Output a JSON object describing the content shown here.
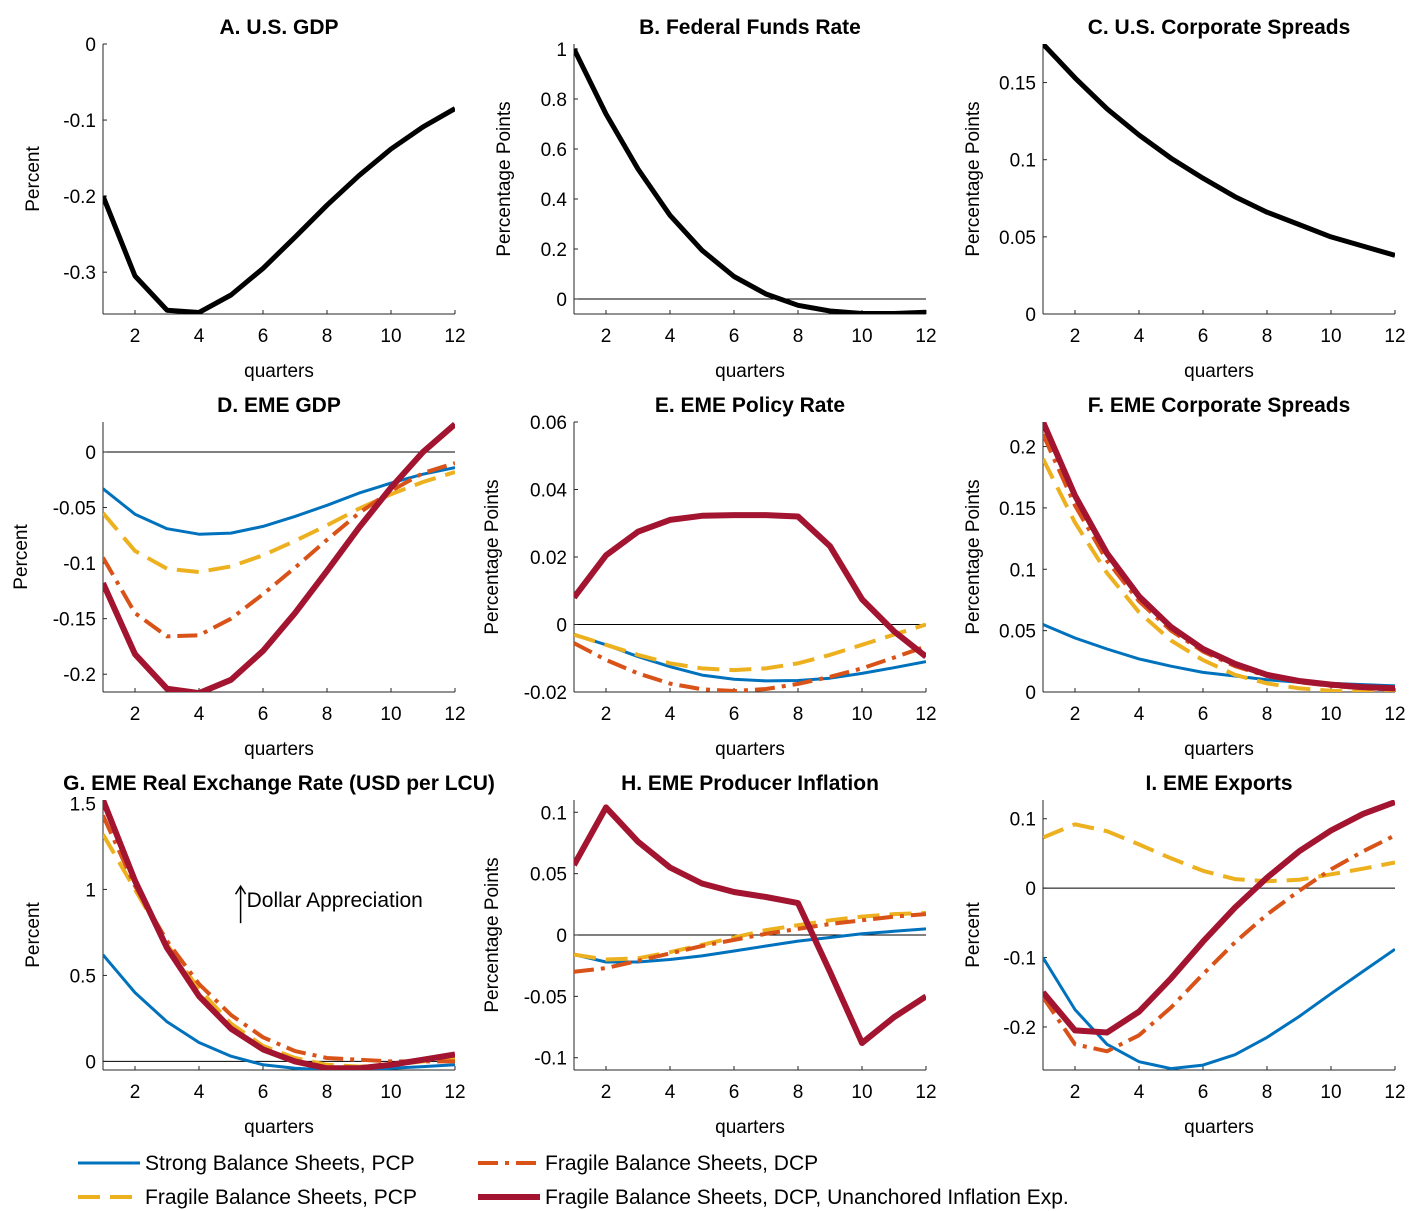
{
  "figure": {
    "legend": [
      {
        "label": "Strong Balance Sheets, PCP",
        "color": "#0072BD",
        "style": "solid-thin"
      },
      {
        "label": "Fragile Balance Sheets, DCP",
        "color": "#D95319",
        "style": "dashdot"
      },
      {
        "label": "Fragile Balance Sheets, PCP",
        "color": "#EDB120",
        "style": "dashed"
      },
      {
        "label": "Fragile Balance Sheets, DCP, Unanchored Inflation Exp.",
        "color": "#A2142F",
        "style": "solid-thick"
      }
    ]
  },
  "chart_data": [
    {
      "id": "A",
      "type": "line",
      "title": "A. U.S. GDP",
      "xlabel": "quarters",
      "ylabel": "Percent",
      "xlim": [
        1,
        12
      ],
      "ylim": [
        -0.355,
        0
      ],
      "xticks": [
        2,
        4,
        6,
        8,
        10,
        12
      ],
      "xtick_labels": [
        "2",
        "4",
        "6",
        "8",
        "10",
        "12"
      ],
      "yticks": [
        -0.3,
        -0.2,
        -0.1,
        0
      ],
      "ytick_labels": [
        "-0.3",
        "-0.2",
        "-0.1",
        "0"
      ],
      "zero_line": false,
      "x": [
        1,
        2,
        3,
        4,
        5,
        6,
        7,
        8,
        9,
        10,
        11,
        12
      ],
      "series": [
        {
          "color": "#000000",
          "width": 5,
          "values": [
            -0.2,
            -0.305,
            -0.35,
            -0.353,
            -0.33,
            -0.295,
            -0.254,
            -0.212,
            -0.173,
            -0.138,
            -0.109,
            -0.085
          ]
        }
      ]
    },
    {
      "id": "B",
      "type": "line",
      "title": "B. Federal Funds Rate",
      "xlabel": "quarters",
      "ylabel": "Percentage Points",
      "xlim": [
        1,
        12
      ],
      "ylim": [
        -0.06,
        1.02
      ],
      "xticks": [
        2,
        4,
        6,
        8,
        10,
        12
      ],
      "xtick_labels": [
        "2",
        "4",
        "6",
        "8",
        "10",
        "12"
      ],
      "yticks": [
        0,
        0.2,
        0.4,
        0.6,
        0.8,
        1
      ],
      "ytick_labels": [
        "0",
        "0.2",
        "0.4",
        "0.6",
        "0.8",
        "1"
      ],
      "zero_line": true,
      "x": [
        1,
        2,
        3,
        4,
        5,
        6,
        7,
        8,
        9,
        10,
        11,
        12
      ],
      "series": [
        {
          "color": "#000000",
          "width": 5,
          "values": [
            1.0,
            0.74,
            0.52,
            0.335,
            0.195,
            0.09,
            0.02,
            -0.025,
            -0.048,
            -0.058,
            -0.058,
            -0.053
          ]
        }
      ]
    },
    {
      "id": "C",
      "type": "line",
      "title": "C. U.S. Corporate Spreads",
      "xlabel": "quarters",
      "ylabel": "Percentage Points",
      "xlim": [
        1,
        12
      ],
      "ylim": [
        0,
        0.175
      ],
      "xticks": [
        2,
        4,
        6,
        8,
        10,
        12
      ],
      "xtick_labels": [
        "2",
        "4",
        "6",
        "8",
        "10",
        "12"
      ],
      "yticks": [
        0,
        0.05,
        0.1,
        0.15
      ],
      "ytick_labels": [
        "0",
        "0.05",
        "0.1",
        "0.15"
      ],
      "zero_line": false,
      "x": [
        1,
        2,
        3,
        4,
        5,
        6,
        7,
        8,
        9,
        10,
        11,
        12
      ],
      "series": [
        {
          "color": "#000000",
          "width": 5,
          "values": [
            0.175,
            0.153,
            0.133,
            0.116,
            0.101,
            0.088,
            0.076,
            0.066,
            0.058,
            0.05,
            0.044,
            0.038
          ]
        }
      ]
    },
    {
      "id": "D",
      "type": "line",
      "title": "D. EME GDP",
      "xlabel": "quarters",
      "ylabel": "Percent",
      "xlim": [
        1,
        12
      ],
      "ylim": [
        -0.216,
        0.027
      ],
      "xticks": [
        2,
        4,
        6,
        8,
        10,
        12
      ],
      "xtick_labels": [
        "2",
        "4",
        "6",
        "8",
        "10",
        "12"
      ],
      "yticks": [
        -0.2,
        -0.15,
        -0.1,
        -0.05,
        0
      ],
      "ytick_labels": [
        "-0.2",
        "-0.15",
        "-0.1",
        "-0.05",
        "0"
      ],
      "zero_line": true,
      "x": [
        1,
        2,
        3,
        4,
        5,
        6,
        7,
        8,
        9,
        10,
        11,
        12
      ],
      "series": [
        {
          "color": "#0072BD",
          "width": 3,
          "dash": "",
          "values": [
            -0.033,
            -0.056,
            -0.069,
            -0.074,
            -0.073,
            -0.067,
            -0.058,
            -0.048,
            -0.037,
            -0.028,
            -0.02,
            -0.014
          ]
        },
        {
          "color": "#EDB120",
          "width": 4,
          "dash": "22 10",
          "values": [
            -0.055,
            -0.089,
            -0.105,
            -0.108,
            -0.103,
            -0.093,
            -0.08,
            -0.066,
            -0.051,
            -0.038,
            -0.027,
            -0.018
          ]
        },
        {
          "color": "#D95319",
          "width": 4,
          "dash": "20 7 4 7",
          "values": [
            -0.095,
            -0.145,
            -0.166,
            -0.165,
            -0.15,
            -0.128,
            -0.104,
            -0.079,
            -0.055,
            -0.035,
            -0.019,
            -0.01
          ]
        },
        {
          "color": "#A2142F",
          "width": 6,
          "dash": "",
          "values": [
            -0.118,
            -0.182,
            -0.213,
            -0.217,
            -0.205,
            -0.179,
            -0.145,
            -0.107,
            -0.068,
            -0.032,
            0.0,
            0.025
          ]
        }
      ]
    },
    {
      "id": "E",
      "type": "line",
      "title": "E. EME Policy Rate",
      "xlabel": "quarters",
      "ylabel": "Percentage Points",
      "xlim": [
        1,
        12
      ],
      "ylim": [
        -0.02,
        0.06
      ],
      "xticks": [
        2,
        4,
        6,
        8,
        10,
        12
      ],
      "xtick_labels": [
        "2",
        "4",
        "6",
        "8",
        "10",
        "12"
      ],
      "yticks": [
        -0.02,
        0,
        0.02,
        0.04,
        0.06
      ],
      "ytick_labels": [
        "-0.02",
        "0",
        "0.02",
        "0.04",
        "0.06"
      ],
      "zero_line": true,
      "x": [
        1,
        2,
        3,
        4,
        5,
        6,
        7,
        8,
        9,
        10,
        11,
        12
      ],
      "series": [
        {
          "color": "#0072BD",
          "width": 3,
          "dash": "",
          "values": [
            -0.003,
            -0.006,
            -0.0095,
            -0.0125,
            -0.015,
            -0.0162,
            -0.0167,
            -0.0166,
            -0.0159,
            -0.0145,
            -0.0128,
            -0.011
          ]
        },
        {
          "color": "#EDB120",
          "width": 4,
          "dash": "22 10",
          "values": [
            -0.003,
            -0.006,
            -0.009,
            -0.0115,
            -0.013,
            -0.0135,
            -0.013,
            -0.0115,
            -0.009,
            -0.006,
            -0.003,
            0.0
          ]
        },
        {
          "color": "#D95319",
          "width": 4,
          "dash": "20 7 4 7",
          "values": [
            -0.0055,
            -0.0105,
            -0.0145,
            -0.0175,
            -0.0192,
            -0.0197,
            -0.0191,
            -0.0176,
            -0.0155,
            -0.013,
            -0.0098,
            -0.0065
          ]
        },
        {
          "color": "#A2142F",
          "width": 6,
          "dash": "",
          "values": [
            0.008,
            0.0205,
            0.0275,
            0.031,
            0.0322,
            0.0324,
            0.0324,
            0.032,
            0.0232,
            0.0075,
            -0.002,
            -0.0095
          ]
        }
      ]
    },
    {
      "id": "F",
      "type": "line",
      "title": "F. EME Corporate Spreads",
      "xlabel": "quarters",
      "ylabel": "Percentage Points",
      "xlim": [
        1,
        12
      ],
      "ylim": [
        0,
        0.22
      ],
      "xticks": [
        2,
        4,
        6,
        8,
        10,
        12
      ],
      "xtick_labels": [
        "2",
        "4",
        "6",
        "8",
        "10",
        "12"
      ],
      "yticks": [
        0,
        0.05,
        0.1,
        0.15,
        0.2
      ],
      "ytick_labels": [
        "0",
        "0.05",
        "0.1",
        "0.15",
        "0.2"
      ],
      "zero_line": false,
      "x": [
        1,
        2,
        3,
        4,
        5,
        6,
        7,
        8,
        9,
        10,
        11,
        12
      ],
      "series": [
        {
          "color": "#0072BD",
          "width": 3,
          "dash": "",
          "values": [
            0.055,
            0.044,
            0.035,
            0.027,
            0.021,
            0.016,
            0.013,
            0.01,
            0.008,
            0.007,
            0.006,
            0.005
          ]
        },
        {
          "color": "#EDB120",
          "width": 4,
          "dash": "22 10",
          "values": [
            0.19,
            0.138,
            0.097,
            0.065,
            0.042,
            0.026,
            0.014,
            0.007,
            0.003,
            0.001,
            0.0,
            0.0
          ]
        },
        {
          "color": "#D95319",
          "width": 4,
          "dash": "20 7 4 7",
          "values": [
            0.21,
            0.152,
            0.107,
            0.074,
            0.05,
            0.033,
            0.021,
            0.013,
            0.008,
            0.005,
            0.003,
            0.002
          ]
        },
        {
          "color": "#A2142F",
          "width": 6,
          "dash": "",
          "values": [
            0.22,
            0.16,
            0.113,
            0.078,
            0.053,
            0.035,
            0.023,
            0.014,
            0.009,
            0.006,
            0.004,
            0.003
          ]
        }
      ]
    },
    {
      "id": "G",
      "type": "line",
      "title": "G. EME Real Exchange Rate (USD per LCU)",
      "xlabel": "quarters",
      "ylabel": "Percent",
      "xlim": [
        1,
        12
      ],
      "ylim": [
        -0.05,
        1.52
      ],
      "xticks": [
        2,
        4,
        6,
        8,
        10,
        12
      ],
      "xtick_labels": [
        "2",
        "4",
        "6",
        "8",
        "10",
        "12"
      ],
      "yticks": [
        0,
        0.5,
        1,
        1.5
      ],
      "ytick_labels": [
        "0",
        "0.5",
        "1",
        "1.5"
      ],
      "zero_line": true,
      "annotation": {
        "text": "Dollar Appreciation",
        "arrow": "up",
        "x": 5.3,
        "y": 0.92
      },
      "x": [
        1,
        2,
        3,
        4,
        5,
        6,
        7,
        8,
        9,
        10,
        11,
        12
      ],
      "series": [
        {
          "color": "#0072BD",
          "width": 3,
          "dash": "",
          "values": [
            0.62,
            0.4,
            0.23,
            0.11,
            0.03,
            -0.02,
            -0.04,
            -0.05,
            -0.05,
            -0.04,
            -0.03,
            -0.02
          ]
        },
        {
          "color": "#EDB120",
          "width": 4,
          "dash": "22 10",
          "values": [
            1.32,
            1.0,
            0.68,
            0.42,
            0.22,
            0.09,
            0.02,
            -0.02,
            -0.03,
            -0.02,
            0.0,
            0.02
          ]
        },
        {
          "color": "#D95319",
          "width": 4,
          "dash": "20 7 4 7",
          "values": [
            1.43,
            1.02,
            0.7,
            0.45,
            0.27,
            0.14,
            0.06,
            0.02,
            0.01,
            0.0,
            0.0,
            0.0
          ]
        },
        {
          "color": "#A2142F",
          "width": 6,
          "dash": "",
          "values": [
            1.52,
            1.05,
            0.66,
            0.38,
            0.19,
            0.07,
            0.0,
            -0.04,
            -0.04,
            -0.02,
            0.01,
            0.04
          ]
        }
      ]
    },
    {
      "id": "H",
      "type": "line",
      "title": "H. EME Producer Inflation",
      "xlabel": "quarters",
      "ylabel": "Percentage Points",
      "xlim": [
        1,
        12
      ],
      "ylim": [
        -0.11,
        0.11
      ],
      "xticks": [
        2,
        4,
        6,
        8,
        10,
        12
      ],
      "xtick_labels": [
        "2",
        "4",
        "6",
        "8",
        "10",
        "12"
      ],
      "yticks": [
        -0.1,
        -0.05,
        0,
        0.05,
        0.1
      ],
      "ytick_labels": [
        "-0.1",
        "-0.05",
        "0",
        "0.05",
        "0.1"
      ],
      "zero_line": true,
      "x": [
        1,
        2,
        3,
        4,
        5,
        6,
        7,
        8,
        9,
        10,
        11,
        12
      ],
      "series": [
        {
          "color": "#0072BD",
          "width": 3,
          "dash": "",
          "values": [
            -0.016,
            -0.022,
            -0.022,
            -0.02,
            -0.017,
            -0.013,
            -0.009,
            -0.005,
            -0.002,
            0.001,
            0.003,
            0.005
          ]
        },
        {
          "color": "#EDB120",
          "width": 4,
          "dash": "22 10",
          "values": [
            -0.016,
            -0.02,
            -0.019,
            -0.014,
            -0.008,
            -0.002,
            0.004,
            0.008,
            0.012,
            0.015,
            0.017,
            0.018
          ]
        },
        {
          "color": "#D95319",
          "width": 4,
          "dash": "20 7 4 7",
          "values": [
            -0.03,
            -0.027,
            -0.021,
            -0.015,
            -0.009,
            -0.004,
            0.001,
            0.005,
            0.009,
            0.012,
            0.015,
            0.017
          ]
        },
        {
          "color": "#A2142F",
          "width": 6,
          "dash": "",
          "values": [
            0.057,
            0.104,
            0.076,
            0.055,
            0.042,
            0.035,
            0.031,
            0.026,
            -0.03,
            -0.088,
            -0.067,
            -0.05
          ]
        }
      ]
    },
    {
      "id": "I",
      "type": "line",
      "title": "I. EME Exports",
      "xlabel": "quarters",
      "ylabel": "Percent",
      "xlim": [
        1,
        12
      ],
      "ylim": [
        -0.262,
        0.127
      ],
      "xticks": [
        2,
        4,
        6,
        8,
        10,
        12
      ],
      "xtick_labels": [
        "2",
        "4",
        "6",
        "8",
        "10",
        "12"
      ],
      "yticks": [
        -0.2,
        -0.1,
        0,
        0.1
      ],
      "ytick_labels": [
        "-0.2",
        "-0.1",
        "0",
        "0.1"
      ],
      "zero_line": true,
      "x": [
        1,
        2,
        3,
        4,
        5,
        6,
        7,
        8,
        9,
        10,
        11,
        12
      ],
      "series": [
        {
          "color": "#0072BD",
          "width": 3,
          "dash": "",
          "values": [
            -0.1,
            -0.175,
            -0.225,
            -0.25,
            -0.26,
            -0.255,
            -0.24,
            -0.215,
            -0.185,
            -0.152,
            -0.12,
            -0.088
          ]
        },
        {
          "color": "#EDB120",
          "width": 4,
          "dash": "22 10",
          "values": [
            0.073,
            0.092,
            0.082,
            0.063,
            0.043,
            0.025,
            0.013,
            0.01,
            0.012,
            0.02,
            0.028,
            0.037
          ]
        },
        {
          "color": "#D95319",
          "width": 4,
          "dash": "20 7 4 7",
          "values": [
            -0.157,
            -0.225,
            -0.235,
            -0.212,
            -0.172,
            -0.124,
            -0.078,
            -0.038,
            -0.004,
            0.027,
            0.053,
            0.076
          ]
        },
        {
          "color": "#A2142F",
          "width": 6,
          "dash": "",
          "values": [
            -0.15,
            -0.205,
            -0.208,
            -0.178,
            -0.13,
            -0.077,
            -0.028,
            0.015,
            0.053,
            0.083,
            0.107,
            0.124
          ]
        }
      ]
    }
  ]
}
